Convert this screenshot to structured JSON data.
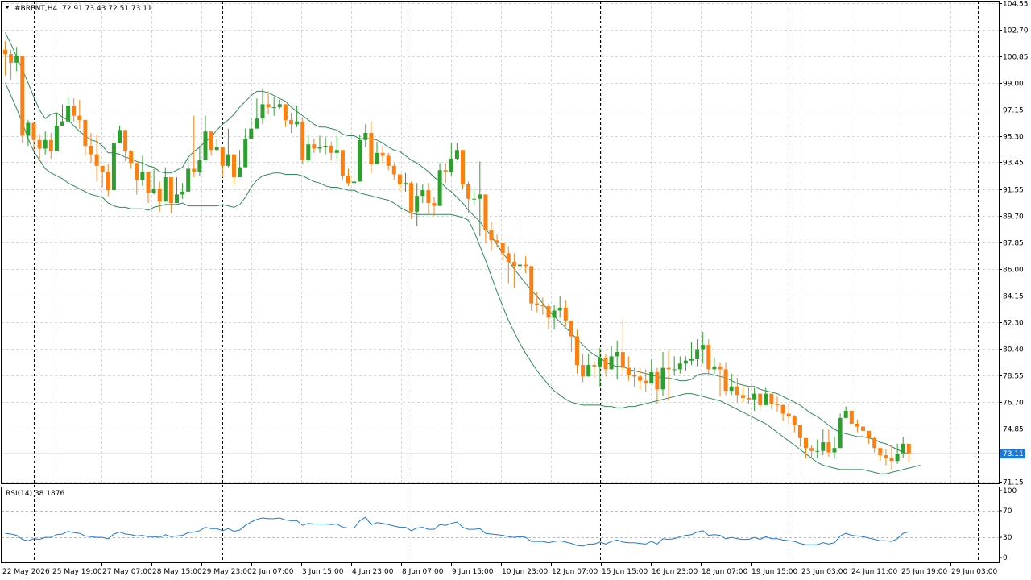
{
  "window": {
    "symbol_header": "#BRENT,H4",
    "ohlc_header": "72.91 73.43 72.51 73.11",
    "current_price": "73.11"
  },
  "colors": {
    "background": "#ffffff",
    "axis": "#000000",
    "grid": "#d7d7d7",
    "bull_candle": "#2ca02c",
    "bear_candle": "#ff7f0e",
    "bollinger": "#2e8b57",
    "rsi_line": "#1e78d7",
    "price_tag": "#1e78d7"
  },
  "chart_data": [
    {
      "type": "candlestick",
      "title": "#BRENT,H4",
      "ylim": [
        71.15,
        104.55
      ],
      "y_ticks": [
        "104.55",
        "102.70",
        "100.85",
        "99.00",
        "97.15",
        "95.30",
        "93.45",
        "91.55",
        "89.70",
        "87.85",
        "86.00",
        "84.15",
        "82.30",
        "80.40",
        "78.55",
        "76.70",
        "74.85",
        "71.15"
      ],
      "x_labels": [
        "22 May 2026",
        "25 May 19:00",
        "27 May 07:00",
        "28 May 15:00",
        "29 May 23:00",
        "2 Jun 07:00",
        "3 Jun 15:00",
        "4 Jun 23:00",
        "8 Jun 07:00",
        "9 Jun 15:00",
        "10 Jun 23:00",
        "12 Jun 07:00",
        "15 Jun 15:00",
        "16 Jun 23:00",
        "18 Jun 07:00",
        "19 Jun 15:00",
        "23 Jun 03:00",
        "24 Jun 11:00",
        "25 Jun 19:00",
        "29 Jun 03:00"
      ],
      "period_separators": [
        5,
        38,
        71,
        104,
        137,
        170
      ],
      "grid": true,
      "last_price": 73.11,
      "close": [
        101.0,
        100.4,
        100.9,
        95.3,
        96.2,
        95.0,
        94.4,
        95.0,
        94.2,
        96.0,
        96.3,
        97.4,
        96.7,
        96.4,
        94.6,
        94.0,
        93.2,
        92.8,
        91.5,
        94.8,
        95.7,
        94.2,
        93.4,
        92.2,
        92.8,
        91.3,
        91.6,
        90.7,
        92.4,
        90.6,
        91.2,
        91.4,
        93.0,
        92.8,
        93.6,
        95.6,
        94.3,
        94.5,
        93.2,
        94.0,
        92.4,
        93.1,
        95.1,
        95.8,
        96.5,
        97.5,
        97.3,
        97.3,
        97.5,
        96.4,
        96.1,
        96.3,
        93.6,
        94.7,
        94.4,
        94.5,
        94.6,
        94.1,
        94.3,
        92.5,
        92.0,
        92.1,
        95.0,
        95.5,
        93.3,
        94.1,
        93.9,
        93.2,
        92.6,
        91.9,
        92.0,
        90.0,
        91.1,
        91.5,
        90.6,
        90.4,
        92.9,
        92.8,
        93.7,
        94.3,
        91.9,
        90.9,
        90.9,
        91.2,
        88.7,
        88.0,
        87.8,
        87.1,
        86.5,
        86.2,
        86.3,
        86.2,
        83.6,
        83.5,
        83.4,
        82.6,
        83.1,
        83.3,
        82.4,
        81.3,
        79.3,
        78.5,
        79.3,
        79.2,
        79.8,
        79.0,
        79.9,
        80.2,
        79.1,
        78.6,
        78.5,
        78.2,
        78.0,
        78.8,
        77.6,
        79.1,
        79.0,
        79.0,
        79.4,
        79.6,
        79.7,
        80.4,
        80.7,
        79.0,
        79.2,
        79.0,
        77.5,
        77.8,
        77.2,
        77.0,
        76.9,
        77.3,
        76.5,
        77.3,
        76.6,
        76.5,
        75.9,
        75.7,
        75.1,
        74.2,
        73.5,
        73.3,
        73.3,
        73.9,
        73.2,
        73.5,
        75.6,
        76.1,
        75.2,
        75.0,
        74.7,
        74.2,
        73.5,
        73.0,
        72.8,
        72.6,
        73.1,
        73.8,
        73.11
      ],
      "high": [
        101.9,
        101.3,
        101.5,
        96.7,
        96.4,
        96.1,
        95.4,
        95.6,
        95.5,
        96.9,
        97.5,
        98.0,
        97.9,
        97.8,
        95.0,
        95.5,
        95.4,
        93.2,
        93.3,
        95.5,
        96.0,
        95.5,
        94.3,
        93.2,
        93.9,
        92.4,
        93.0,
        92.1,
        93.1,
        91.9,
        92.4,
        92.0,
        93.8,
        96.7,
        94.6,
        96.7,
        95.4,
        95.1,
        94.2,
        95.8,
        93.7,
        94.3,
        95.8,
        96.6,
        97.9,
        98.6,
        98.4,
        98.0,
        97.8,
        97.1,
        96.9,
        97.4,
        96.6,
        95.4,
        95.1,
        95.3,
        95.2,
        94.9,
        95.3,
        93.6,
        93.0,
        93.1,
        95.4,
        96.1,
        96.3,
        94.9,
        94.6,
        94.1,
        93.4,
        92.3,
        92.7,
        92.1,
        92.0,
        91.9,
        92.0,
        91.0,
        93.4,
        93.4,
        94.8,
        94.8,
        94.2,
        92.1,
        91.6,
        93.5,
        90.9,
        89.3,
        88.4,
        87.8,
        87.6,
        87.1,
        89.1,
        86.9,
        85.2,
        84.4,
        84.0,
        83.6,
        83.5,
        84.1,
        83.8,
        82.3,
        81.8,
        80.1,
        80.1,
        79.6,
        80.5,
        80.1,
        80.6,
        81.0,
        82.5,
        79.9,
        79.1,
        79.1,
        79.0,
        79.7,
        79.1,
        80.2,
        80.3,
        79.9,
        79.9,
        79.9,
        80.9,
        81.1,
        81.6,
        81.1,
        79.8,
        79.5,
        79.5,
        78.7,
        78.4,
        77.8,
        77.7,
        77.7,
        77.2,
        77.7,
        77.3,
        77.1,
        76.6,
        76.6,
        75.8,
        75.1,
        74.1,
        73.7,
        74.1,
        74.8,
        74.8,
        74.3,
        75.9,
        76.4,
        76.1,
        75.5,
        75.2,
        74.7,
        74.3,
        73.5,
        73.4,
        73.7,
        73.8,
        74.3,
        73.43
      ],
      "low": [
        99.5,
        99.2,
        99.8,
        94.8,
        94.6,
        94.2,
        93.6,
        94.0,
        93.7,
        95.4,
        96.1,
        96.5,
        96.3,
        95.8,
        93.9,
        93.4,
        92.1,
        91.7,
        91.1,
        93.8,
        94.8,
        93.5,
        93.0,
        91.2,
        91.8,
        90.6,
        91.2,
        90.0,
        91.1,
        89.9,
        90.9,
        90.9,
        92.5,
        92.4,
        92.5,
        95.0,
        93.9,
        94.2,
        92.4,
        93.1,
        91.9,
        92.7,
        94.6,
        95.6,
        96.2,
        96.1,
        96.8,
        96.7,
        97.2,
        95.9,
        95.5,
        95.9,
        93.3,
        93.5,
        94.1,
        94.1,
        94.0,
        93.6,
        93.7,
        92.2,
        91.8,
        91.7,
        93.6,
        94.5,
        92.7,
        93.4,
        93.3,
        92.9,
        92.2,
        91.4,
        91.4,
        89.5,
        89.0,
        90.6,
        89.8,
        89.7,
        91.8,
        92.0,
        92.5,
        93.6,
        91.6,
        89.9,
        90.5,
        88.3,
        87.8,
        87.3,
        87.5,
        86.6,
        85.0,
        84.7,
        85.6,
        85.7,
        83.1,
        83.0,
        82.8,
        81.8,
        81.8,
        82.6,
        82.0,
        80.2,
        78.7,
        78.1,
        78.6,
        78.4,
        77.8,
        78.5,
        79.2,
        78.3,
        78.6,
        78.2,
        77.8,
        77.6,
        77.4,
        78.4,
        76.6,
        77.1,
        76.8,
        78.6,
        78.7,
        78.9,
        79.3,
        79.2,
        79.4,
        78.7,
        78.7,
        77.1,
        77.2,
        77.2,
        76.7,
        76.7,
        76.6,
        76.1,
        76.1,
        76.5,
        76.2,
        76.0,
        75.4,
        75.2,
        74.6,
        73.6,
        72.8,
        72.8,
        72.8,
        73.0,
        72.9,
        72.8,
        74.1,
        75.7,
        75.4,
        74.6,
        74.5,
        73.8,
        73.2,
        72.6,
        72.3,
        72.0,
        72.4,
        72.8,
        72.51
      ],
      "bb_upper": [
        102.5,
        101.7,
        100.8,
        99.9,
        99.0,
        98.0,
        97.1,
        96.5,
        96.8,
        96.9,
        96.6,
        96.4,
        96.0,
        95.6,
        95.3,
        95.0,
        94.9,
        94.6,
        94.1,
        94.1,
        94.0,
        93.8,
        93.7,
        93.5,
        93.4,
        93.2,
        93.1,
        92.8,
        92.7,
        92.7,
        92.9,
        93.1,
        93.8,
        94.2,
        94.5,
        94.9,
        95.2,
        95.7,
        96.1,
        96.4,
        96.8,
        97.3,
        97.7,
        98.1,
        98.4,
        98.4,
        98.3,
        98.1,
        97.9,
        97.7,
        97.3,
        97.0,
        96.7,
        96.4,
        96.1,
        95.9,
        95.9,
        95.8,
        95.7,
        95.4,
        95.3,
        95.3,
        95.1,
        95.1,
        95.1,
        95.0,
        94.8,
        94.5,
        94.3,
        94.2,
        93.9,
        93.6,
        93.4,
        93.1,
        92.8,
        92.4,
        92.1,
        91.7,
        91.4,
        91.0,
        90.6,
        90.1,
        89.7,
        89.3,
        88.8,
        88.3,
        87.7,
        87.1,
        86.6,
        86.0,
        85.5,
        85.0,
        84.5,
        84.1,
        83.6,
        83.1,
        82.7,
        82.3,
        81.9,
        81.5,
        81.1,
        80.7,
        80.3,
        80.0,
        79.8,
        79.5,
        79.3,
        79.2,
        79.2,
        79.0,
        78.9,
        78.8,
        78.7,
        78.6,
        78.5,
        78.4,
        78.4,
        78.3,
        78.2,
        78.2,
        78.3,
        78.6,
        78.7,
        78.7,
        78.6,
        78.5,
        78.4,
        78.2,
        78.0,
        77.9,
        77.8,
        77.8,
        77.6,
        77.5,
        77.4,
        77.3,
        77.1,
        76.9,
        76.7,
        76.5,
        76.2,
        75.9,
        75.7,
        75.4,
        75.1,
        74.8,
        74.6,
        74.5,
        74.4,
        74.3,
        74.3,
        74.2,
        74.1,
        73.9,
        73.8,
        73.6,
        73.4,
        73.2,
        73.11
      ],
      "bb_lower": [
        99.0,
        98.1,
        97.2,
        96.2,
        95.1,
        94.2,
        93.6,
        93.0,
        92.7,
        92.5,
        92.3,
        92.0,
        91.8,
        91.6,
        91.4,
        91.2,
        91.1,
        91.0,
        90.6,
        90.4,
        90.3,
        90.3,
        90.2,
        90.2,
        90.2,
        90.1,
        90.3,
        90.4,
        90.5,
        90.5,
        90.5,
        90.6,
        90.4,
        90.4,
        90.4,
        90.4,
        90.4,
        90.4,
        90.5,
        90.4,
        90.3,
        90.5,
        91.0,
        91.7,
        92.2,
        92.5,
        92.6,
        92.7,
        92.7,
        92.6,
        92.6,
        92.6,
        92.5,
        92.3,
        92.1,
        92.0,
        91.8,
        91.7,
        91.7,
        91.6,
        91.5,
        91.5,
        91.3,
        91.2,
        91.1,
        91.0,
        90.9,
        90.8,
        90.6,
        90.3,
        90.1,
        89.9,
        89.8,
        89.8,
        89.8,
        89.8,
        89.8,
        89.8,
        89.8,
        89.7,
        89.6,
        89.4,
        88.6,
        87.6,
        86.6,
        85.5,
        84.4,
        83.4,
        82.4,
        81.6,
        80.8,
        80.1,
        79.5,
        78.9,
        78.4,
        77.9,
        77.5,
        77.2,
        76.9,
        76.7,
        76.6,
        76.5,
        76.5,
        76.5,
        76.5,
        76.4,
        76.4,
        76.3,
        76.3,
        76.4,
        76.4,
        76.5,
        76.6,
        76.7,
        76.8,
        76.9,
        77.0,
        77.1,
        77.2,
        77.3,
        77.3,
        77.2,
        77.1,
        77.0,
        76.9,
        76.8,
        76.6,
        76.4,
        76.2,
        76.0,
        75.8,
        75.6,
        75.4,
        75.2,
        74.9,
        74.6,
        74.3,
        74.0,
        73.7,
        73.4,
        73.1,
        72.8,
        72.5,
        72.3,
        72.2,
        72.1,
        72.0,
        72.0,
        72.0,
        72.0,
        72.0,
        71.9,
        71.8,
        71.7,
        71.7,
        71.8,
        71.9,
        72.0,
        72.1,
        72.2,
        72.3
      ]
    },
    {
      "type": "line",
      "title": "RSI(14) 38.1876",
      "ylim": [
        0,
        100
      ],
      "y_ticks": [
        "100",
        "70",
        "30",
        "0"
      ],
      "levels": [
        70,
        30
      ],
      "series": [
        {
          "name": "RSI(14)",
          "values": [
            36.0,
            35.0,
            33.0,
            27.0,
            25.0,
            28.0,
            27.0,
            30.0,
            30.0,
            34.0,
            35.0,
            39.0,
            37.0,
            36.0,
            32.0,
            31.0,
            30.0,
            30.0,
            28.0,
            35.0,
            38.0,
            35.0,
            34.0,
            32.0,
            33.0,
            31.0,
            31.0,
            30.0,
            34.0,
            31.0,
            32.0,
            33.0,
            37.0,
            38.0,
            40.0,
            45.0,
            43.0,
            43.0,
            40.0,
            43.0,
            39.0,
            41.0,
            48.0,
            53.0,
            57.0,
            59.0,
            58.0,
            58.0,
            59.0,
            56.0,
            55.0,
            55.0,
            48.0,
            51.0,
            50.0,
            50.0,
            50.0,
            49.0,
            50.0,
            45.0,
            44.0,
            44.0,
            55.0,
            60.0,
            49.0,
            52.0,
            51.0,
            49.0,
            47.0,
            45.0,
            45.0,
            40.0,
            44.0,
            45.0,
            42.0,
            42.0,
            49.0,
            48.0,
            51.0,
            53.0,
            45.0,
            42.0,
            42.0,
            43.0,
            36.0,
            35.0,
            34.0,
            33.0,
            31.0,
            30.0,
            31.0,
            30.0,
            24.0,
            24.0,
            24.0,
            22.0,
            24.0,
            25.0,
            23.0,
            21.0,
            18.0,
            17.0,
            20.0,
            20.0,
            23.0,
            20.0,
            24.0,
            26.0,
            23.0,
            22.0,
            22.0,
            21.0,
            20.0,
            24.0,
            20.0,
            28.0,
            27.0,
            28.0,
            31.0,
            33.0,
            34.0,
            38.0,
            40.0,
            33.0,
            34.0,
            33.0,
            28.0,
            30.0,
            28.0,
            27.0,
            27.0,
            30.0,
            27.0,
            31.0,
            28.0,
            28.0,
            26.0,
            25.0,
            24.0,
            21.0,
            19.0,
            19.0,
            19.0,
            22.0,
            20.0,
            22.0,
            32.0,
            36.0,
            33.0,
            32.0,
            31.0,
            29.0,
            27.0,
            25.0,
            25.0,
            24.0,
            28.0,
            36.0,
            38.2
          ]
        }
      ]
    }
  ]
}
